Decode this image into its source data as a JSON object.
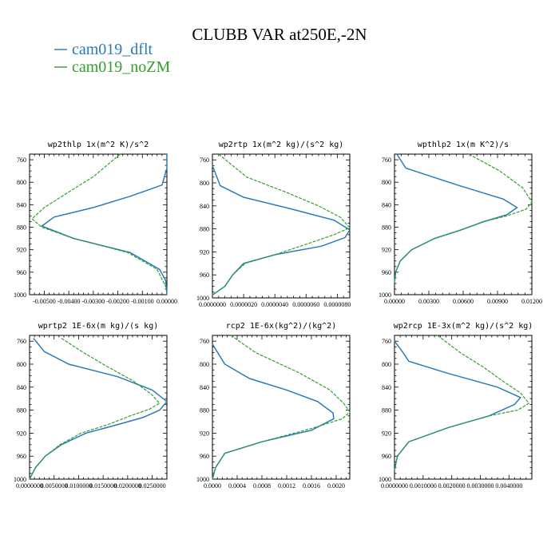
{
  "title": "CLUBB VAR at250E,-2N",
  "colors": {
    "dflt": "#2b7bba",
    "noZM": "#33a02c",
    "axis": "#000000"
  },
  "legend": [
    {
      "label": "cam019_dflt",
      "color": "#2b7bba",
      "style": "solid"
    },
    {
      "label": "cam019_noZM",
      "color": "#33a02c",
      "style": "dashed"
    }
  ],
  "chart_data": [
    {
      "type": "line",
      "title": "wp2thlp   1x(m^2 K)/s^2",
      "xlim": [
        -0.0056,
        0.0
      ],
      "xticks": [
        "-0.00500",
        "-0.00400",
        "-0.00300",
        "-0.00200",
        "-0.00100",
        "0.00000"
      ],
      "xtick_values": [
        -0.005,
        -0.004,
        -0.003,
        -0.002,
        -0.001,
        0.0
      ],
      "ylim": [
        1000,
        750
      ],
      "yticks": [
        760,
        800,
        840,
        880,
        920,
        960,
        1000
      ],
      "series": [
        {
          "name": "cam019_dflt",
          "x": [
            0.0,
            0.0,
            -0.0002,
            -0.0015,
            -0.003,
            -0.0046,
            -0.0051,
            -0.0038,
            -0.0015,
            -0.0003,
            -5e-05,
            0.0
          ],
          "y": [
            750,
            775,
            805,
            825,
            845,
            862,
            878,
            900,
            925,
            955,
            975,
            1000
          ]
        },
        {
          "name": "cam019_noZM",
          "x": [
            -0.0019,
            -0.003,
            -0.0041,
            -0.005,
            -0.0055,
            -0.0051,
            -0.0038,
            -0.0016,
            -0.0004,
            0.0
          ],
          "y": [
            750,
            790,
            820,
            845,
            865,
            880,
            900,
            925,
            955,
            990
          ]
        }
      ]
    },
    {
      "type": "line",
      "title": "wp2rtp   1x(m^2 kg)/(s^2 kg)",
      "xlim": [
        0.0,
        8.8e-06
      ],
      "xticks": [
        "0.0000000",
        "0.0000020",
        "0.0000040",
        "0.0000060",
        "0.0000080"
      ],
      "xtick_values": [
        0.0,
        2e-06,
        4e-06,
        6e-06,
        8e-06
      ],
      "ylim": [
        1000,
        750
      ],
      "yticks": [
        760,
        800,
        840,
        880,
        920,
        960,
        1000
      ],
      "series": [
        {
          "name": "cam019_dflt",
          "x": [
            0.0,
            5e-07,
            2e-06,
            5e-06,
            7.8e-06,
            8.8e-06,
            8.5e-06,
            7e-06,
            4e-06,
            2e-06,
            1.3e-06,
            8e-07,
            0.0
          ],
          "y": [
            770,
            805,
            825,
            845,
            865,
            882,
            895,
            910,
            925,
            940,
            960,
            980,
            995
          ]
        },
        {
          "name": "cam019_noZM",
          "x": [
            4e-07,
            2.2e-06,
            4.6e-06,
            6.8e-06,
            8.2e-06,
            8.8e-06,
            7.8e-06,
            6.2e-06,
            4e-06,
            2.1e-06,
            1.3e-06,
            8e-07,
            0.0
          ],
          "y": [
            750,
            790,
            815,
            840,
            860,
            878,
            890,
            905,
            925,
            940,
            960,
            980,
            995
          ]
        }
      ]
    },
    {
      "type": "line",
      "title": "wpthlp2   1x(m K^2)/s",
      "xlim": [
        0.0,
        0.012
      ],
      "xticks": [
        "0.00000",
        "0.00300",
        "0.00600",
        "0.00900",
        "0.01200"
      ],
      "xtick_values": [
        0.0,
        0.003,
        0.006,
        0.009,
        0.012
      ],
      "ylim": [
        1000,
        750
      ],
      "yticks": [
        760,
        800,
        840,
        880,
        920,
        960,
        1000
      ],
      "series": [
        {
          "name": "cam019_dflt",
          "x": [
            0.0002,
            0.001,
            0.0055,
            0.0095,
            0.0107,
            0.0098,
            0.0078,
            0.0058,
            0.0035,
            0.0015,
            0.0005,
            0.0001,
            0.0
          ],
          "y": [
            750,
            775,
            805,
            830,
            845,
            858,
            870,
            885,
            900,
            920,
            940,
            960,
            980
          ]
        },
        {
          "name": "cam019_noZM",
          "x": [
            0.0065,
            0.0092,
            0.0112,
            0.012,
            0.0115,
            0.0098,
            0.0078,
            0.0058,
            0.0035,
            0.0015,
            0.0005,
            0.0001,
            0.0
          ],
          "y": [
            750,
            780,
            810,
            835,
            848,
            860,
            870,
            885,
            900,
            920,
            940,
            960,
            980
          ]
        }
      ]
    },
    {
      "type": "line",
      "title": "wprtp2   1E-6x(m kg)/(s kg)",
      "xlim": [
        0.0,
        0.028
      ],
      "xticks": [
        "0.0000000",
        "0.0050000",
        "0.0100000",
        "0.0150000",
        "0.0200000",
        "0.0250000"
      ],
      "xtick_values": [
        0.0,
        0.005,
        0.01,
        0.015,
        0.02,
        0.025
      ],
      "ylim": [
        1000,
        750
      ],
      "yticks": [
        760,
        800,
        840,
        880,
        920,
        960,
        1000
      ],
      "series": [
        {
          "name": "cam019_dflt",
          "x": [
            0.0008,
            0.003,
            0.008,
            0.018,
            0.025,
            0.028,
            0.0265,
            0.023,
            0.018,
            0.0115,
            0.0065,
            0.0032,
            0.0012,
            0.0
          ],
          "y": [
            755,
            778,
            800,
            822,
            845,
            865,
            880,
            893,
            905,
            920,
            940,
            960,
            980,
            1000
          ]
        },
        {
          "name": "cam019_noZM",
          "x": [
            0.0065,
            0.011,
            0.016,
            0.0213,
            0.0248,
            0.0265,
            0.0245,
            0.0205,
            0.016,
            0.0105,
            0.0062,
            0.0032,
            0.0012,
            0.0
          ],
          "y": [
            755,
            780,
            805,
            830,
            852,
            868,
            878,
            890,
            905,
            920,
            940,
            960,
            980,
            1000
          ]
        }
      ]
    },
    {
      "type": "line",
      "title": "rcp2   1E-6x(kg^2)/(kg^2)",
      "xlim": [
        0.0,
        0.00222
      ],
      "xticks": [
        "0.0000",
        "0.0004",
        "0.0008",
        "0.0012",
        "0.0016",
        "0.0020"
      ],
      "xtick_values": [
        0.0,
        0.0004,
        0.0008,
        0.0012,
        0.0016,
        0.002
      ],
      "ylim": [
        1000,
        750
      ],
      "yticks": [
        760,
        800,
        840,
        880,
        920,
        960,
        1000
      ],
      "series": [
        {
          "name": "cam019_dflt",
          "x": [
            0.0,
            0.0002,
            0.0006,
            0.0012,
            0.0017,
            0.00195,
            0.00196,
            0.0016,
            0.0008,
            0.0002,
            5e-05,
            0.0
          ],
          "y": [
            765,
            800,
            825,
            845,
            865,
            885,
            895,
            915,
            935,
            955,
            980,
            1000
          ]
        },
        {
          "name": "cam019_noZM",
          "x": [
            0.0003,
            0.0007,
            0.0014,
            0.0019,
            0.00212,
            0.00222,
            0.0021,
            0.0016,
            0.0008,
            0.0002,
            5e-05,
            0.0
          ],
          "y": [
            750,
            780,
            815,
            845,
            868,
            883,
            895,
            912,
            935,
            955,
            980,
            1000
          ]
        }
      ]
    },
    {
      "type": "line",
      "title": "wp2rcp   1E-3x(m^2 kg)/(s^2 kg)",
      "xlim": [
        0.0,
        0.0048
      ],
      "xticks": [
        "0.0000000",
        "0.0010000",
        "0.0020000",
        "0.0030000",
        "0.0040000"
      ],
      "xtick_values": [
        0.0,
        0.001,
        0.002,
        0.003,
        0.004
      ],
      "ylim": [
        1000,
        750
      ],
      "yticks": [
        760,
        800,
        840,
        880,
        920,
        960,
        1000
      ],
      "series": [
        {
          "name": "cam019_dflt",
          "x": [
            0.0,
            0.0003,
            0.0005,
            0.0018,
            0.0036,
            0.0044,
            0.0042,
            0.0033,
            0.0019,
            0.0005,
            0.0001,
            0.0
          ],
          "y": [
            760,
            780,
            795,
            815,
            840,
            858,
            870,
            890,
            910,
            935,
            960,
            985
          ]
        },
        {
          "name": "cam019_noZM",
          "x": [
            0.0015,
            0.0023,
            0.0031,
            0.0038,
            0.0044,
            0.0047,
            0.0043,
            0.0033,
            0.0019,
            0.0005,
            0.0001,
            0.0
          ],
          "y": [
            750,
            780,
            805,
            830,
            850,
            868,
            880,
            890,
            910,
            935,
            960,
            985
          ]
        }
      ]
    }
  ]
}
